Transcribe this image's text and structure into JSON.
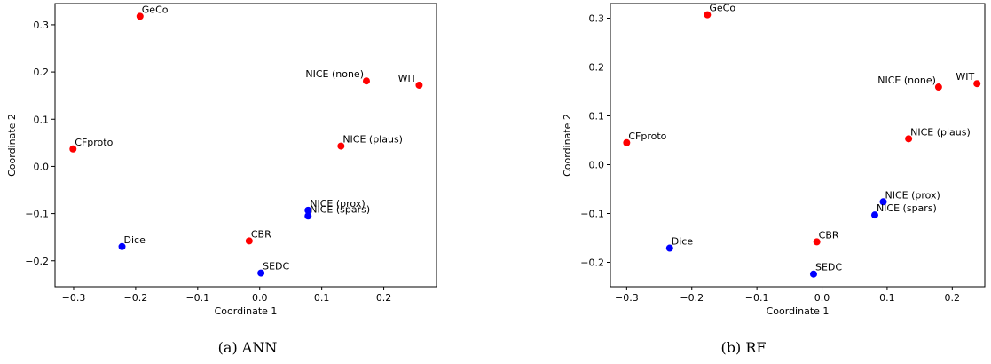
{
  "chart_data": [
    {
      "type": "scatter",
      "caption": "(a) ANN",
      "xlabel": "Coordinate 1",
      "ylabel": "Coordinate 2",
      "xlim": [
        -0.33,
        0.285
      ],
      "ylim": [
        -0.255,
        0.345
      ],
      "xticks": [
        -0.3,
        -0.2,
        -0.1,
        0.0,
        0.1,
        0.2
      ],
      "xtick_labels": [
        "−0.3",
        "−0.2",
        "−0.1",
        "0.0",
        "0.1",
        "0.2"
      ],
      "yticks": [
        -0.2,
        -0.1,
        0.0,
        0.1,
        0.2,
        0.3
      ],
      "ytick_labels": [
        "−0.2",
        "−0.1",
        "0.0",
        "0.1",
        "0.2",
        "0.3"
      ],
      "grid": false,
      "colors": {
        "red": "#ff0000",
        "blue": "#0000ff"
      },
      "points": [
        {
          "label": "GeCo",
          "x": -0.193,
          "y": 0.318,
          "color": "red",
          "anchor": "right"
        },
        {
          "label": "NICE (none)",
          "x": 0.172,
          "y": 0.181,
          "color": "red",
          "anchor": "left"
        },
        {
          "label": "WIT",
          "x": 0.257,
          "y": 0.172,
          "color": "red",
          "anchor": "left"
        },
        {
          "label": "CFproto",
          "x": -0.301,
          "y": 0.037,
          "color": "red",
          "anchor": "right"
        },
        {
          "label": "NICE (plaus)",
          "x": 0.131,
          "y": 0.043,
          "color": "red",
          "anchor": "right"
        },
        {
          "label": "NICE (prox)",
          "x": 0.078,
          "y": -0.093,
          "color": "blue",
          "anchor": "right"
        },
        {
          "label": "NICE (spars)",
          "x": 0.078,
          "y": -0.105,
          "color": "blue",
          "anchor": "right"
        },
        {
          "label": "CBR",
          "x": -0.017,
          "y": -0.158,
          "color": "red",
          "anchor": "right"
        },
        {
          "label": "Dice",
          "x": -0.222,
          "y": -0.17,
          "color": "blue",
          "anchor": "right"
        },
        {
          "label": "SEDC",
          "x": 0.002,
          "y": -0.226,
          "color": "blue",
          "anchor": "right"
        }
      ]
    },
    {
      "type": "scatter",
      "caption": "(b) RF",
      "xlabel": "Coordinate 1",
      "ylabel": "Coordinate 2",
      "xlim": [
        -0.325,
        0.25
      ],
      "ylim": [
        -0.25,
        0.33
      ],
      "xticks": [
        -0.3,
        -0.2,
        -0.1,
        0.0,
        0.1,
        0.2
      ],
      "xtick_labels": [
        "−0.3",
        "−0.2",
        "−0.1",
        "0.0",
        "0.1",
        "0.2"
      ],
      "yticks": [
        -0.2,
        -0.1,
        0.0,
        0.1,
        0.2,
        0.3
      ],
      "ytick_labels": [
        "−0.2",
        "−0.1",
        "0.0",
        "0.1",
        "0.2",
        "0.3"
      ],
      "grid": false,
      "colors": {
        "red": "#ff0000",
        "blue": "#0000ff"
      },
      "points": [
        {
          "label": "GeCo",
          "x": -0.176,
          "y": 0.307,
          "color": "red",
          "anchor": "right"
        },
        {
          "label": "NICE (none)",
          "x": 0.179,
          "y": 0.159,
          "color": "red",
          "anchor": "left"
        },
        {
          "label": "WIT",
          "x": 0.238,
          "y": 0.166,
          "color": "red",
          "anchor": "left"
        },
        {
          "label": "CFproto",
          "x": -0.3,
          "y": 0.045,
          "color": "red",
          "anchor": "right"
        },
        {
          "label": "NICE (plaus)",
          "x": 0.133,
          "y": 0.053,
          "color": "red",
          "anchor": "right"
        },
        {
          "label": "NICE (prox)",
          "x": 0.094,
          "y": -0.076,
          "color": "blue",
          "anchor": "right"
        },
        {
          "label": "NICE (spars)",
          "x": 0.081,
          "y": -0.103,
          "color": "blue",
          "anchor": "right"
        },
        {
          "label": "CBR",
          "x": -0.008,
          "y": -0.158,
          "color": "red",
          "anchor": "right"
        },
        {
          "label": "Dice",
          "x": -0.234,
          "y": -0.171,
          "color": "blue",
          "anchor": "right"
        },
        {
          "label": "SEDC",
          "x": -0.013,
          "y": -0.224,
          "color": "blue",
          "anchor": "right"
        }
      ]
    }
  ]
}
